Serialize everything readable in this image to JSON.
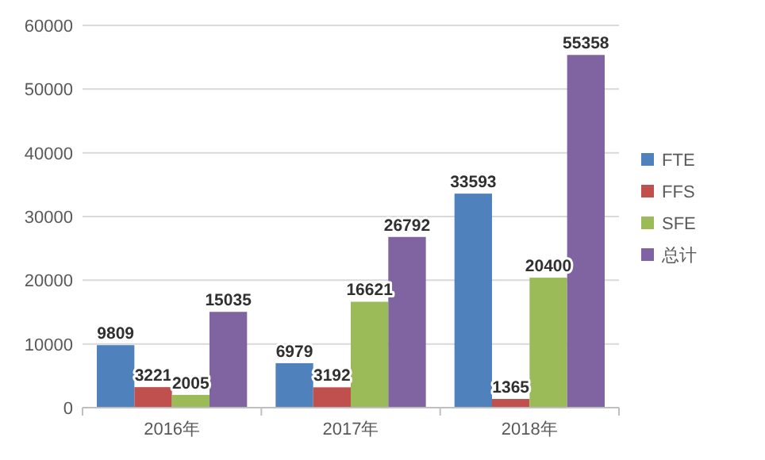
{
  "chart_data": {
    "type": "bar",
    "categories": [
      "2016年",
      "2017年",
      "2018年"
    ],
    "series": [
      {
        "name": "FTE",
        "color": "#4f81bd",
        "values": [
          9809,
          6979,
          33593
        ]
      },
      {
        "name": "FFS",
        "color": "#c0504d",
        "values": [
          3221,
          3192,
          1365
        ]
      },
      {
        "name": "SFE",
        "color": "#9bbb59",
        "values": [
          2005,
          16621,
          20400
        ]
      },
      {
        "name": "总计",
        "color": "#8064a2",
        "values": [
          15035,
          26792,
          55358
        ]
      }
    ],
    "ylim": [
      0,
      60000
    ],
    "yticks": [
      0,
      10000,
      20000,
      30000,
      40000,
      50000,
      60000
    ],
    "grid": "y",
    "legend": "right",
    "data_labels": true
  }
}
